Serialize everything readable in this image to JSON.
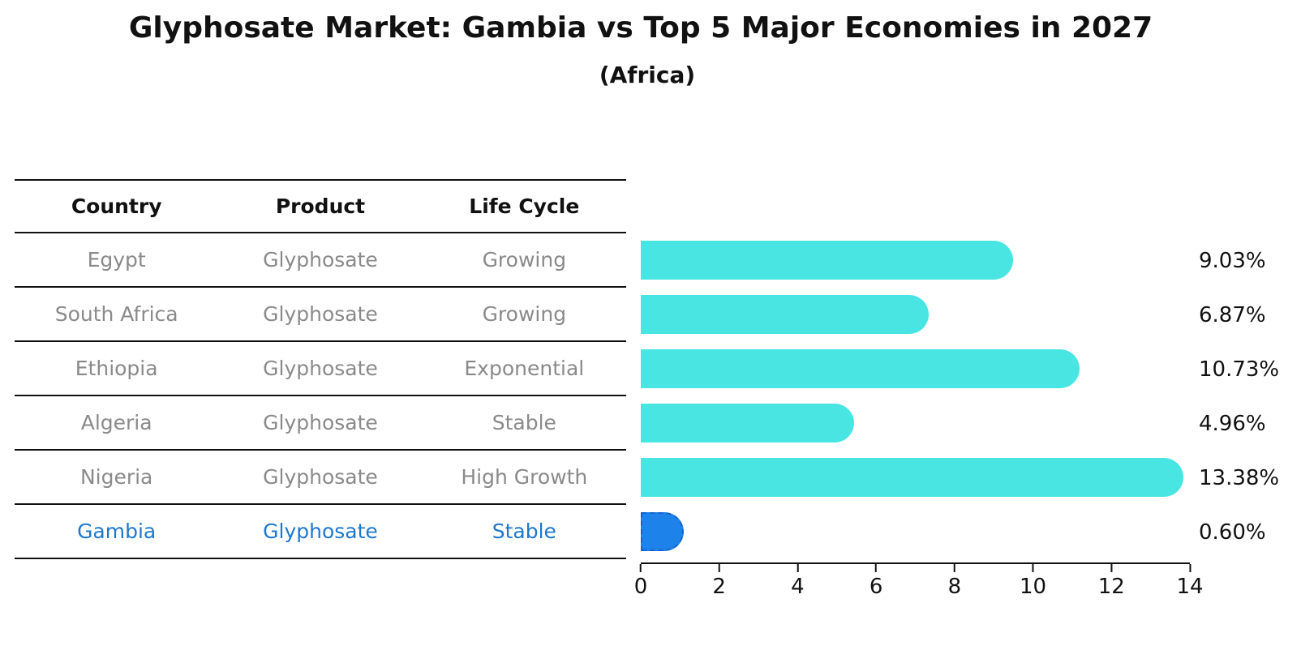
{
  "title": "Glyphosate Market: Gambia vs Top 5 Major Economies in 2027",
  "subtitle": "(Africa)",
  "table": {
    "headers": [
      "Country",
      "Product",
      "Life Cycle"
    ],
    "rows": [
      {
        "country": "Egypt",
        "product": "Glyphosate",
        "life_cycle": "Growing"
      },
      {
        "country": "South Africa",
        "product": "Glyphosate",
        "life_cycle": "Growing"
      },
      {
        "country": "Ethiopia",
        "product": "Glyphosate",
        "life_cycle": "Exponential"
      },
      {
        "country": "Algeria",
        "product": "Glyphosate",
        "life_cycle": "Stable"
      },
      {
        "country": "Nigeria",
        "product": "Glyphosate",
        "life_cycle": "High Growth"
      },
      {
        "country": "Gambia",
        "product": "Glyphosate",
        "life_cycle": "Stable"
      }
    ]
  },
  "chart_data": {
    "type": "bar",
    "orientation": "horizontal",
    "title": "Glyphosate Market: Gambia vs Top 5 Major Economies in 2027",
    "subtitle": "(Africa)",
    "categories": [
      "Egypt",
      "South Africa",
      "Ethiopia",
      "Algeria",
      "Nigeria",
      "Gambia"
    ],
    "values": [
      9.03,
      6.87,
      10.73,
      4.96,
      13.38,
      0.6
    ],
    "value_labels": [
      "9.03%",
      "6.87%",
      "10.73%",
      "4.96%",
      "13.38%",
      "0.60%"
    ],
    "xlim": [
      0,
      14
    ],
    "xticks": [
      0,
      2,
      4,
      6,
      8,
      10,
      12,
      14
    ],
    "xlabel": "",
    "ylabel": "",
    "grid": false,
    "legend": false,
    "highlight_index": 5
  },
  "colors": {
    "bar": "#48E5E3",
    "highlight_bar": "#1E82EB",
    "highlight_text": "#1C78CE",
    "row_text": "#8A8A8A",
    "header_text": "#111111",
    "axis": "#111111"
  }
}
